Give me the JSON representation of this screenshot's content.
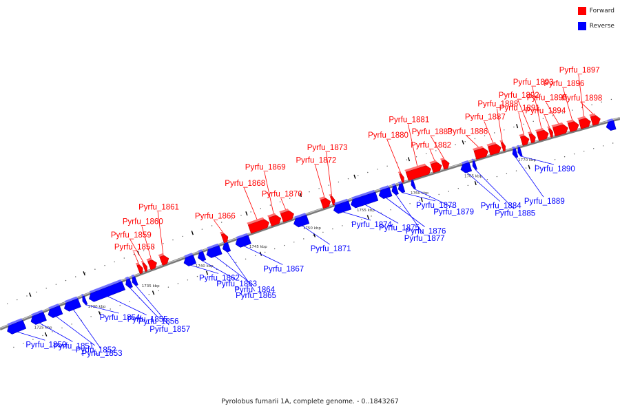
{
  "caption": "Pyrolobus fumarii 1A, complete genome. - 0..1843267",
  "legend": [
    {
      "label": "Forward",
      "color": "#ff0000"
    },
    {
      "label": "Reverse",
      "color": "#0000ff"
    }
  ],
  "colors": {
    "forward": "#ff0000",
    "reverse": "#0000ff",
    "backbone": "#808080"
  },
  "axis": {
    "unit": "kbp",
    "ticks": [
      {
        "kbp": 1725,
        "label": "1725 kbp"
      },
      {
        "kbp": 1730,
        "label": "1730 kbp"
      },
      {
        "kbp": 1735,
        "label": "1735 kbp"
      },
      {
        "kbp": 1740,
        "label": "1740 kbp"
      },
      {
        "kbp": 1745,
        "label": "1745 kbp"
      },
      {
        "kbp": 1750,
        "label": "1750 kbp"
      },
      {
        "kbp": 1755,
        "label": "1755 kbp"
      },
      {
        "kbp": 1760,
        "label": "1760 kbp"
      },
      {
        "kbp": 1765,
        "label": "1765 kbp"
      },
      {
        "kbp": 1770,
        "label": "1770 kbp"
      }
    ]
  },
  "genes": [
    {
      "name": "Pyrfu_1850",
      "strand": "reverse",
      "start": 1722.0,
      "end": 1723.6
    },
    {
      "name": "Pyrfu_1851",
      "strand": "reverse",
      "start": 1724.2,
      "end": 1725.5
    },
    {
      "name": "Pyrfu_1852",
      "strand": "reverse",
      "start": 1725.8,
      "end": 1727.0
    },
    {
      "name": "Pyrfu_1853",
      "strand": "reverse",
      "start": 1727.3,
      "end": 1728.7
    },
    {
      "name": "Pyrfu_1854",
      "strand": "reverse",
      "start": 1729.0,
      "end": 1729.3
    },
    {
      "name": "Pyrfu_1855",
      "strand": "reverse",
      "start": 1729.6,
      "end": 1732.8
    },
    {
      "name": "Pyrfu_1856",
      "strand": "reverse",
      "start": 1733.0,
      "end": 1733.5
    },
    {
      "name": "Pyrfu_1857",
      "strand": "reverse",
      "start": 1733.6,
      "end": 1734.0
    },
    {
      "name": "Pyrfu_1858",
      "strand": "forward",
      "start": 1734.5,
      "end": 1734.9
    },
    {
      "name": "Pyrfu_1859",
      "strand": "forward",
      "start": 1735.0,
      "end": 1735.3
    },
    {
      "name": "Pyrfu_1860",
      "strand": "forward",
      "start": 1735.5,
      "end": 1736.2
    },
    {
      "name": "Pyrfu_1861",
      "strand": "forward",
      "start": 1736.6,
      "end": 1737.3
    },
    {
      "name": "Pyrfu_1862",
      "strand": "reverse",
      "start": 1738.4,
      "end": 1739.4
    },
    {
      "name": "Pyrfu_1863",
      "strand": "reverse",
      "start": 1739.7,
      "end": 1740.3
    },
    {
      "name": "Pyrfu_1864",
      "strand": "reverse",
      "start": 1740.5,
      "end": 1741.8
    },
    {
      "name": "Pyrfu_1865",
      "strand": "reverse",
      "start": 1742.0,
      "end": 1742.6
    },
    {
      "name": "Pyrfu_1866",
      "strand": "forward",
      "start": 1742.3,
      "end": 1742.8
    },
    {
      "name": "Pyrfu_1867",
      "strand": "reverse",
      "start": 1743.2,
      "end": 1744.5
    },
    {
      "name": "Pyrfu_1868",
      "strand": "forward",
      "start": 1744.8,
      "end": 1746.6
    },
    {
      "name": "Pyrfu_1869",
      "strand": "forward",
      "start": 1746.7,
      "end": 1747.7
    },
    {
      "name": "Pyrfu_1870",
      "strand": "forward",
      "start": 1747.8,
      "end": 1748.9
    },
    {
      "name": "Pyrfu_1871",
      "strand": "reverse",
      "start": 1748.6,
      "end": 1749.9
    },
    {
      "name": "Pyrfu_1872",
      "strand": "forward",
      "start": 1751.5,
      "end": 1752.3
    },
    {
      "name": "Pyrfu_1873",
      "strand": "forward",
      "start": 1752.4,
      "end": 1752.7
    },
    {
      "name": "Pyrfu_1874",
      "strand": "reverse",
      "start": 1752.3,
      "end": 1753.8
    },
    {
      "name": "Pyrfu_1875",
      "strand": "reverse",
      "start": 1753.9,
      "end": 1756.3
    },
    {
      "name": "Pyrfu_1876",
      "strand": "reverse",
      "start": 1756.5,
      "end": 1757.6
    },
    {
      "name": "Pyrfu_1877",
      "strand": "reverse",
      "start": 1757.7,
      "end": 1758.2
    },
    {
      "name": "Pyrfu_1878",
      "strand": "reverse",
      "start": 1758.3,
      "end": 1758.8
    },
    {
      "name": "Pyrfu_1879",
      "strand": "reverse",
      "start": 1759.5,
      "end": 1759.8
    },
    {
      "name": "Pyrfu_1880",
      "strand": "forward",
      "start": 1758.8,
      "end": 1759.1
    },
    {
      "name": "Pyrfu_1881",
      "strand": "forward",
      "start": 1759.4,
      "end": 1761.6
    },
    {
      "name": "Pyrfu_1882",
      "strand": "forward",
      "start": 1761.7,
      "end": 1762.6
    },
    {
      "name": "Pyrfu_1883",
      "strand": "forward",
      "start": 1762.7,
      "end": 1763.3
    },
    {
      "name": "Pyrfu_1884",
      "strand": "reverse",
      "start": 1764.1,
      "end": 1765.0
    },
    {
      "name": "Pyrfu_1885",
      "strand": "reverse",
      "start": 1765.2,
      "end": 1765.5
    },
    {
      "name": "Pyrfu_1886",
      "strand": "forward",
      "start": 1765.7,
      "end": 1766.9
    },
    {
      "name": "Pyrfu_1887",
      "strand": "forward",
      "start": 1767.0,
      "end": 1768.1
    },
    {
      "name": "Pyrfu_1888",
      "strand": "forward",
      "start": 1768.2,
      "end": 1768.5
    },
    {
      "name": "Pyrfu_1889",
      "strand": "reverse",
      "start": 1768.9,
      "end": 1769.3
    },
    {
      "name": "Pyrfu_1890",
      "strand": "reverse",
      "start": 1769.4,
      "end": 1769.7
    },
    {
      "name": "Pyrfu_1891",
      "strand": "forward",
      "start": 1770.0,
      "end": 1770.7
    },
    {
      "name": "Pyrfu_1892",
      "strand": "forward",
      "start": 1770.8,
      "end": 1771.3
    },
    {
      "name": "Pyrfu_1893",
      "strand": "forward",
      "start": 1771.5,
      "end": 1772.5
    },
    {
      "name": "Pyrfu_1894",
      "strand": "forward",
      "start": 1772.6,
      "end": 1772.9
    },
    {
      "name": "Pyrfu_1895",
      "strand": "forward",
      "start": 1773.0,
      "end": 1774.3
    },
    {
      "name": "Pyrfu_1896",
      "strand": "forward",
      "start": 1774.4,
      "end": 1775.3
    },
    {
      "name": "Pyrfu_1897",
      "strand": "forward",
      "start": 1775.4,
      "end": 1776.4
    },
    {
      "name": "Pyrfu_1898",
      "strand": "forward",
      "start": 1776.5,
      "end": 1777.3
    },
    {
      "name": "",
      "strand": "reverse",
      "start": 1777.6,
      "end": 1778.4
    }
  ]
}
